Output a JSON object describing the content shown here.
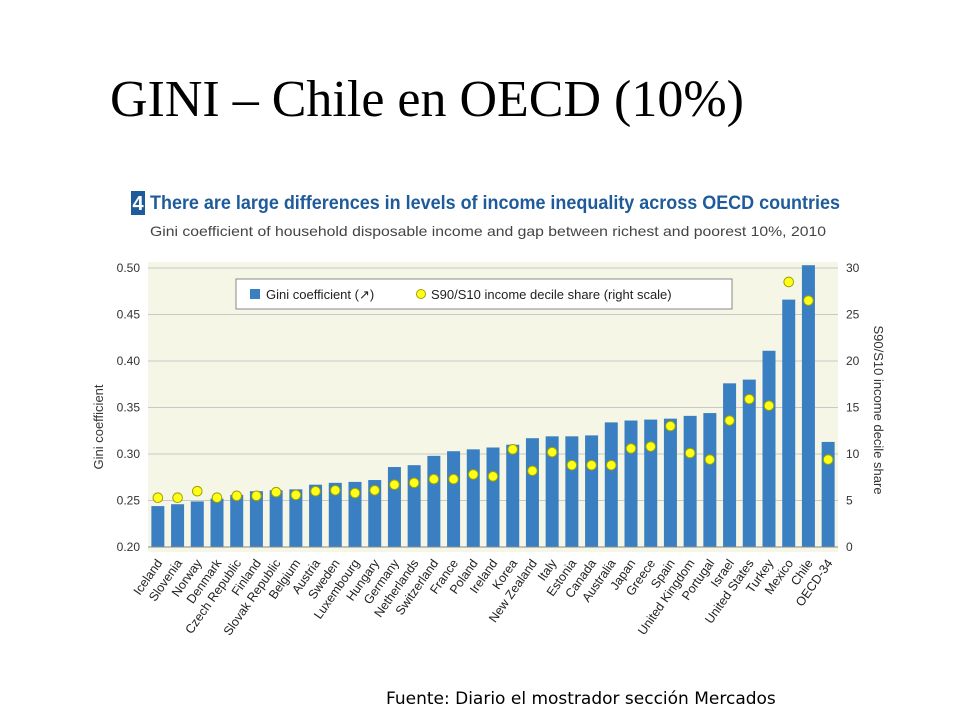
{
  "slide": {
    "title": "GINI – Chile en OECD (10%)",
    "source": "Fuente: Diario el mostrador sección Mercados"
  },
  "chart_data": {
    "type": "bar",
    "figure_number": "4",
    "title": "There are large differences in levels of income inequality across OECD countries",
    "subtitle": "Gini coefficient of household disposable income and gap between richest and poorest 10%, 2010",
    "ylabel": "Gini coefficient",
    "y2label": "S90/S10 income decile share",
    "ylim": [
      0.2,
      0.5
    ],
    "y2lim": [
      0,
      30
    ],
    "yticks": [
      "0.20",
      "0.25",
      "0.30",
      "0.35",
      "0.40",
      "0.45",
      "0.50"
    ],
    "y2ticks": [
      "0",
      "5",
      "10",
      "15",
      "20",
      "25",
      "30"
    ],
    "grid": true,
    "legend_position": "top-left",
    "colors": {
      "bars": "#3a7fc2",
      "dots": "#ffff19",
      "dot_stroke": "#a0a000",
      "title": "#1f5b9b",
      "plot_bg": "#f5f6e6",
      "badge": "#1f5b9b"
    },
    "categories": [
      "Iceland",
      "Slovenia",
      "Norway",
      "Denmark",
      "Czech Republic",
      "Finland",
      "Slovak Republic",
      "Belgium",
      "Austria",
      "Sweden",
      "Luxembourg",
      "Hungary",
      "Germany",
      "Netherlands",
      "Switzerland",
      "France",
      "Poland",
      "Ireland",
      "Korea",
      "New Zealand",
      "Italy",
      "Estonia",
      "Canada",
      "Australia",
      "Japan",
      "Greece",
      "Spain",
      "United Kingdom",
      "Portugal",
      "Israel",
      "United States",
      "Turkey",
      "Mexico",
      "Chile",
      "OECD-34"
    ],
    "series": [
      {
        "name": "Gini coefficient (↗)",
        "axis": "left",
        "values": [
          0.244,
          0.246,
          0.249,
          0.252,
          0.256,
          0.26,
          0.261,
          0.262,
          0.267,
          0.269,
          0.27,
          0.272,
          0.286,
          0.288,
          0.298,
          0.303,
          0.305,
          0.307,
          0.31,
          0.317,
          0.319,
          0.319,
          0.32,
          0.334,
          0.336,
          0.337,
          0.338,
          0.341,
          0.344,
          0.376,
          0.38,
          0.411,
          0.466,
          0.503,
          0.313
        ]
      },
      {
        "name": "S90/S10 income decile share (right scale)",
        "axis": "right",
        "values": [
          5.3,
          5.3,
          6.0,
          5.3,
          5.5,
          5.5,
          5.9,
          5.6,
          6.0,
          6.1,
          5.8,
          6.1,
          6.7,
          6.9,
          7.3,
          7.3,
          7.8,
          7.6,
          10.5,
          8.2,
          10.2,
          8.8,
          8.8,
          8.8,
          10.6,
          10.8,
          13.0,
          10.1,
          9.4,
          13.6,
          15.9,
          15.2,
          28.5,
          26.5,
          9.4
        ]
      }
    ]
  }
}
